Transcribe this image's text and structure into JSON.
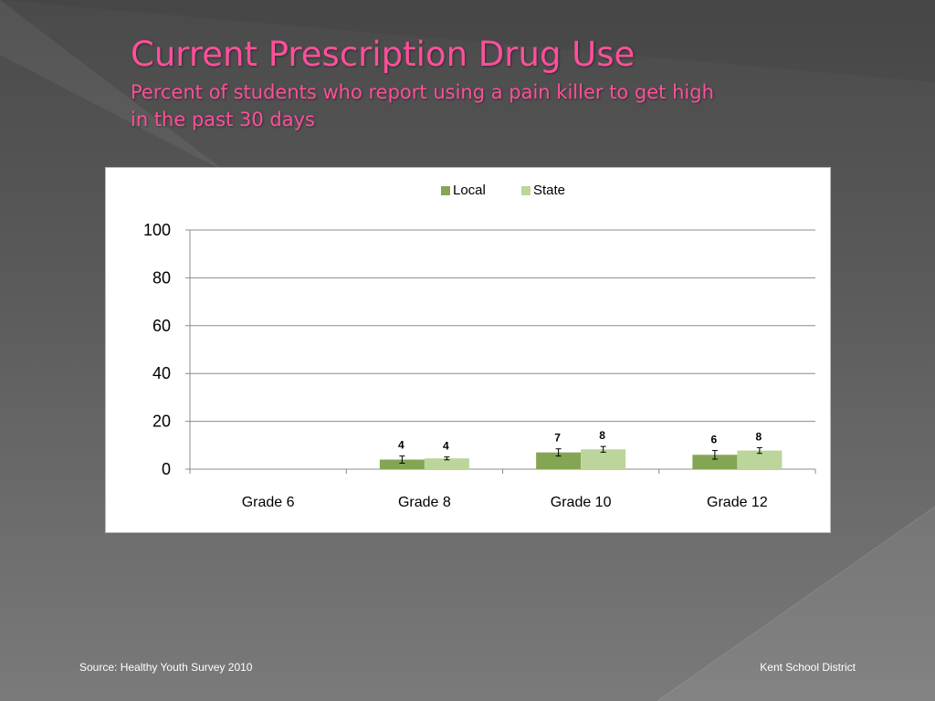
{
  "slide": {
    "title": "Current Prescription Drug Use",
    "subtitle": "Percent of students who report using a pain killer to get high in the past 30 days",
    "source": "Source: Healthy Youth Survey 2010",
    "organization": "Kent School District"
  },
  "colors": {
    "title": "#ff4f9b",
    "local": "#84a654",
    "state": "#bcd59a"
  },
  "chart_data": {
    "type": "bar",
    "title": "",
    "xlabel": "",
    "ylabel": "",
    "categories": [
      "Grade 6",
      "Grade 8",
      "Grade 10",
      "Grade 12"
    ],
    "ylim": [
      0,
      100
    ],
    "yticks": [
      0,
      20,
      40,
      60,
      80,
      100
    ],
    "grid": true,
    "legend": "top-center",
    "series": [
      {
        "name": "Local",
        "color": "#84a654",
        "values": [
          null,
          4,
          7,
          6
        ],
        "labels": [
          "",
          "4",
          "7",
          "6"
        ],
        "error": [
          null,
          1.5,
          1.5,
          1.8
        ]
      },
      {
        "name": "State",
        "color": "#bcd59a",
        "values": [
          null,
          4.5,
          8.3,
          7.8
        ],
        "labels": [
          "",
          "4",
          "8",
          "8"
        ],
        "error": [
          null,
          0.6,
          1.2,
          1.2
        ]
      }
    ]
  }
}
